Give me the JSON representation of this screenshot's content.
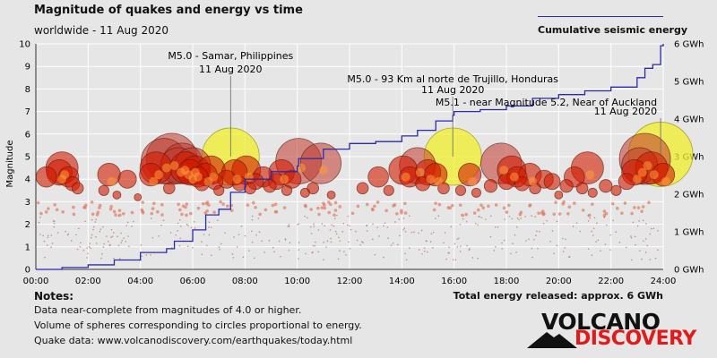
{
  "header": {
    "title": "Magnitude of quakes and energy vs time",
    "subtitle": "worldwide - 11 Aug 2020"
  },
  "legend": {
    "label": "Cumulative seismic energy",
    "color": "#2b2bb0"
  },
  "notes": {
    "heading": "Notes:",
    "lines": [
      "Data near-complete from magnitudes of 4.0 or higher.",
      "Volume of spheres corresponding to circles proportional to energy.",
      "Quake data: www.volcanodiscovery.com/earthquakes/today.html"
    ]
  },
  "total_energy": "Total energy released: approx. 6 GWh",
  "logo": {
    "line1": "VOLCANO",
    "line2": "DISCOVERY",
    "accent": "#e01b1b"
  },
  "colors": {
    "plot_bg": "#e6e6e6",
    "grid": "#ffffff",
    "quake_red": "#d21a00",
    "big_quake": "#f2ee2a"
  },
  "chart_data": {
    "type": "scatter",
    "ylabel": "Magnitude",
    "x_ticks": [
      "00:00",
      "02:00",
      "04:00",
      "06:00",
      "08:00",
      "10:00",
      "12:00",
      "14:00",
      "16:00",
      "18:00",
      "20:00",
      "22:00",
      "24:00"
    ],
    "xlim": [
      0,
      24
    ],
    "ylim": [
      0,
      10
    ],
    "y_ticks": [
      "0",
      "1",
      "2",
      "3",
      "4",
      "5",
      "6",
      "7",
      "8",
      "9",
      "10"
    ],
    "y2_ticks": [
      "0 GWh",
      "1 GWh",
      "2 GWh",
      "3 GWh",
      "4 GWh",
      "5 GWh",
      "6 GWh"
    ],
    "y2lim": [
      0,
      6
    ],
    "grid": true,
    "legend_position": "top-right",
    "annotations": [
      {
        "line1": "M5.0 - Samar, Philippines",
        "line2": "11 Aug 2020",
        "x": 7.45,
        "mag": 5.0
      },
      {
        "line1": "M5.0 - 93 Km al norte de Trujillo, Honduras",
        "line2": "11 Aug 2020",
        "x": 15.95,
        "mag": 5.0
      },
      {
        "line1": "M5.1 - near Magnitude 5.2, Near of Auckland",
        "line2": "11 Aug 2020",
        "x": 23.9,
        "mag": 5.1
      }
    ],
    "quakes": [
      {
        "t": 0.4,
        "mag": 4.1
      },
      {
        "t": 0.9,
        "mag": 4.3
      },
      {
        "t": 1.0,
        "mag": 4.5
      },
      {
        "t": 1.25,
        "mag": 4.1
      },
      {
        "t": 1.4,
        "mag": 3.8
      },
      {
        "t": 1.6,
        "mag": 3.6
      },
      {
        "t": 2.6,
        "mag": 3.5
      },
      {
        "t": 2.8,
        "mag": 4.2
      },
      {
        "t": 3.1,
        "mag": 3.3
      },
      {
        "t": 3.5,
        "mag": 4.0
      },
      {
        "t": 3.9,
        "mag": 3.2
      },
      {
        "t": 4.4,
        "mag": 4.2
      },
      {
        "t": 4.6,
        "mag": 4.5
      },
      {
        "t": 4.9,
        "mag": 4.8
      },
      {
        "t": 5.1,
        "mag": 3.6
      },
      {
        "t": 5.2,
        "mag": 4.9
      },
      {
        "t": 5.45,
        "mag": 4.6
      },
      {
        "t": 5.6,
        "mag": 4.7
      },
      {
        "t": 5.75,
        "mag": 4.5
      },
      {
        "t": 5.9,
        "mag": 4.3
      },
      {
        "t": 6.0,
        "mag": 4.6
      },
      {
        "t": 6.1,
        "mag": 4.4
      },
      {
        "t": 6.2,
        "mag": 4.1
      },
      {
        "t": 6.35,
        "mag": 3.8
      },
      {
        "t": 6.5,
        "mag": 4.2
      },
      {
        "t": 6.7,
        "mag": 4.4
      },
      {
        "t": 6.85,
        "mag": 3.9
      },
      {
        "t": 7.0,
        "mag": 3.5
      },
      {
        "t": 7.3,
        "mag": 4.0
      },
      {
        "t": 7.45,
        "mag": 5.0
      },
      {
        "t": 7.6,
        "mag": 4.3
      },
      {
        "t": 7.8,
        "mag": 3.8
      },
      {
        "t": 8.05,
        "mag": 4.4
      },
      {
        "t": 8.2,
        "mag": 3.6
      },
      {
        "t": 8.4,
        "mag": 3.9
      },
      {
        "t": 8.7,
        "mag": 4.1
      },
      {
        "t": 8.95,
        "mag": 3.7
      },
      {
        "t": 9.2,
        "mag": 3.9
      },
      {
        "t": 9.4,
        "mag": 4.3
      },
      {
        "t": 9.6,
        "mag": 3.5
      },
      {
        "t": 9.8,
        "mag": 4.0
      },
      {
        "t": 10.05,
        "mag": 4.8
      },
      {
        "t": 10.3,
        "mag": 3.4
      },
      {
        "t": 10.6,
        "mag": 3.6
      },
      {
        "t": 10.9,
        "mag": 4.7
      },
      {
        "t": 11.3,
        "mag": 3.3
      },
      {
        "t": 12.5,
        "mag": 3.6
      },
      {
        "t": 13.1,
        "mag": 4.1
      },
      {
        "t": 13.5,
        "mag": 3.5
      },
      {
        "t": 14.05,
        "mag": 4.4
      },
      {
        "t": 14.3,
        "mag": 4.1
      },
      {
        "t": 14.6,
        "mag": 4.6
      },
      {
        "t": 14.8,
        "mag": 3.8
      },
      {
        "t": 15.0,
        "mag": 4.3
      },
      {
        "t": 15.3,
        "mag": 4.2
      },
      {
        "t": 15.6,
        "mag": 3.6
      },
      {
        "t": 15.95,
        "mag": 5.0
      },
      {
        "t": 16.25,
        "mag": 3.5
      },
      {
        "t": 16.6,
        "mag": 4.2
      },
      {
        "t": 16.85,
        "mag": 3.4
      },
      {
        "t": 17.4,
        "mag": 3.7
      },
      {
        "t": 17.8,
        "mag": 4.7
      },
      {
        "t": 18.0,
        "mag": 3.9
      },
      {
        "t": 18.2,
        "mag": 4.4
      },
      {
        "t": 18.4,
        "mag": 4.1
      },
      {
        "t": 18.6,
        "mag": 3.8
      },
      {
        "t": 18.9,
        "mag": 4.2
      },
      {
        "t": 19.1,
        "mag": 3.6
      },
      {
        "t": 19.45,
        "mag": 4.0
      },
      {
        "t": 19.75,
        "mag": 3.9
      },
      {
        "t": 20.0,
        "mag": 3.3
      },
      {
        "t": 20.3,
        "mag": 3.7
      },
      {
        "t": 20.6,
        "mag": 4.1
      },
      {
        "t": 20.9,
        "mag": 3.6
      },
      {
        "t": 21.1,
        "mag": 4.5
      },
      {
        "t": 21.3,
        "mag": 3.4
      },
      {
        "t": 21.8,
        "mag": 3.7
      },
      {
        "t": 22.2,
        "mag": 3.5
      },
      {
        "t": 22.6,
        "mag": 3.9
      },
      {
        "t": 22.9,
        "mag": 4.3
      },
      {
        "t": 23.1,
        "mag": 4.6
      },
      {
        "t": 23.3,
        "mag": 4.9
      },
      {
        "t": 23.55,
        "mag": 4.5
      },
      {
        "t": 23.9,
        "mag": 5.1
      },
      {
        "t": 24.0,
        "mag": 4.2
      }
    ],
    "cumulative_energy": [
      {
        "t": 0.0,
        "gwh": 0.0
      },
      {
        "t": 1.0,
        "gwh": 0.05
      },
      {
        "t": 2.0,
        "gwh": 0.12
      },
      {
        "t": 3.0,
        "gwh": 0.25
      },
      {
        "t": 4.0,
        "gwh": 0.45
      },
      {
        "t": 5.0,
        "gwh": 0.55
      },
      {
        "t": 5.3,
        "gwh": 0.75
      },
      {
        "t": 6.0,
        "gwh": 1.05
      },
      {
        "t": 6.5,
        "gwh": 1.45
      },
      {
        "t": 7.0,
        "gwh": 1.6
      },
      {
        "t": 7.45,
        "gwh": 2.05
      },
      {
        "t": 8.0,
        "gwh": 2.4
      },
      {
        "t": 9.0,
        "gwh": 2.6
      },
      {
        "t": 10.0,
        "gwh": 2.75
      },
      {
        "t": 10.05,
        "gwh": 2.95
      },
      {
        "t": 11.0,
        "gwh": 3.2
      },
      {
        "t": 12.0,
        "gwh": 3.35
      },
      {
        "t": 13.0,
        "gwh": 3.4
      },
      {
        "t": 14.0,
        "gwh": 3.55
      },
      {
        "t": 14.6,
        "gwh": 3.7
      },
      {
        "t": 15.3,
        "gwh": 3.95
      },
      {
        "t": 15.95,
        "gwh": 4.1
      },
      {
        "t": 16.0,
        "gwh": 4.2
      },
      {
        "t": 17.0,
        "gwh": 4.25
      },
      {
        "t": 18.0,
        "gwh": 4.35
      },
      {
        "t": 19.0,
        "gwh": 4.55
      },
      {
        "t": 20.0,
        "gwh": 4.65
      },
      {
        "t": 21.0,
        "gwh": 4.75
      },
      {
        "t": 22.0,
        "gwh": 4.85
      },
      {
        "t": 23.0,
        "gwh": 5.1
      },
      {
        "t": 23.3,
        "gwh": 5.35
      },
      {
        "t": 23.6,
        "gwh": 5.45
      },
      {
        "t": 23.9,
        "gwh": 5.95
      },
      {
        "t": 24.0,
        "gwh": 6.0
      }
    ]
  }
}
